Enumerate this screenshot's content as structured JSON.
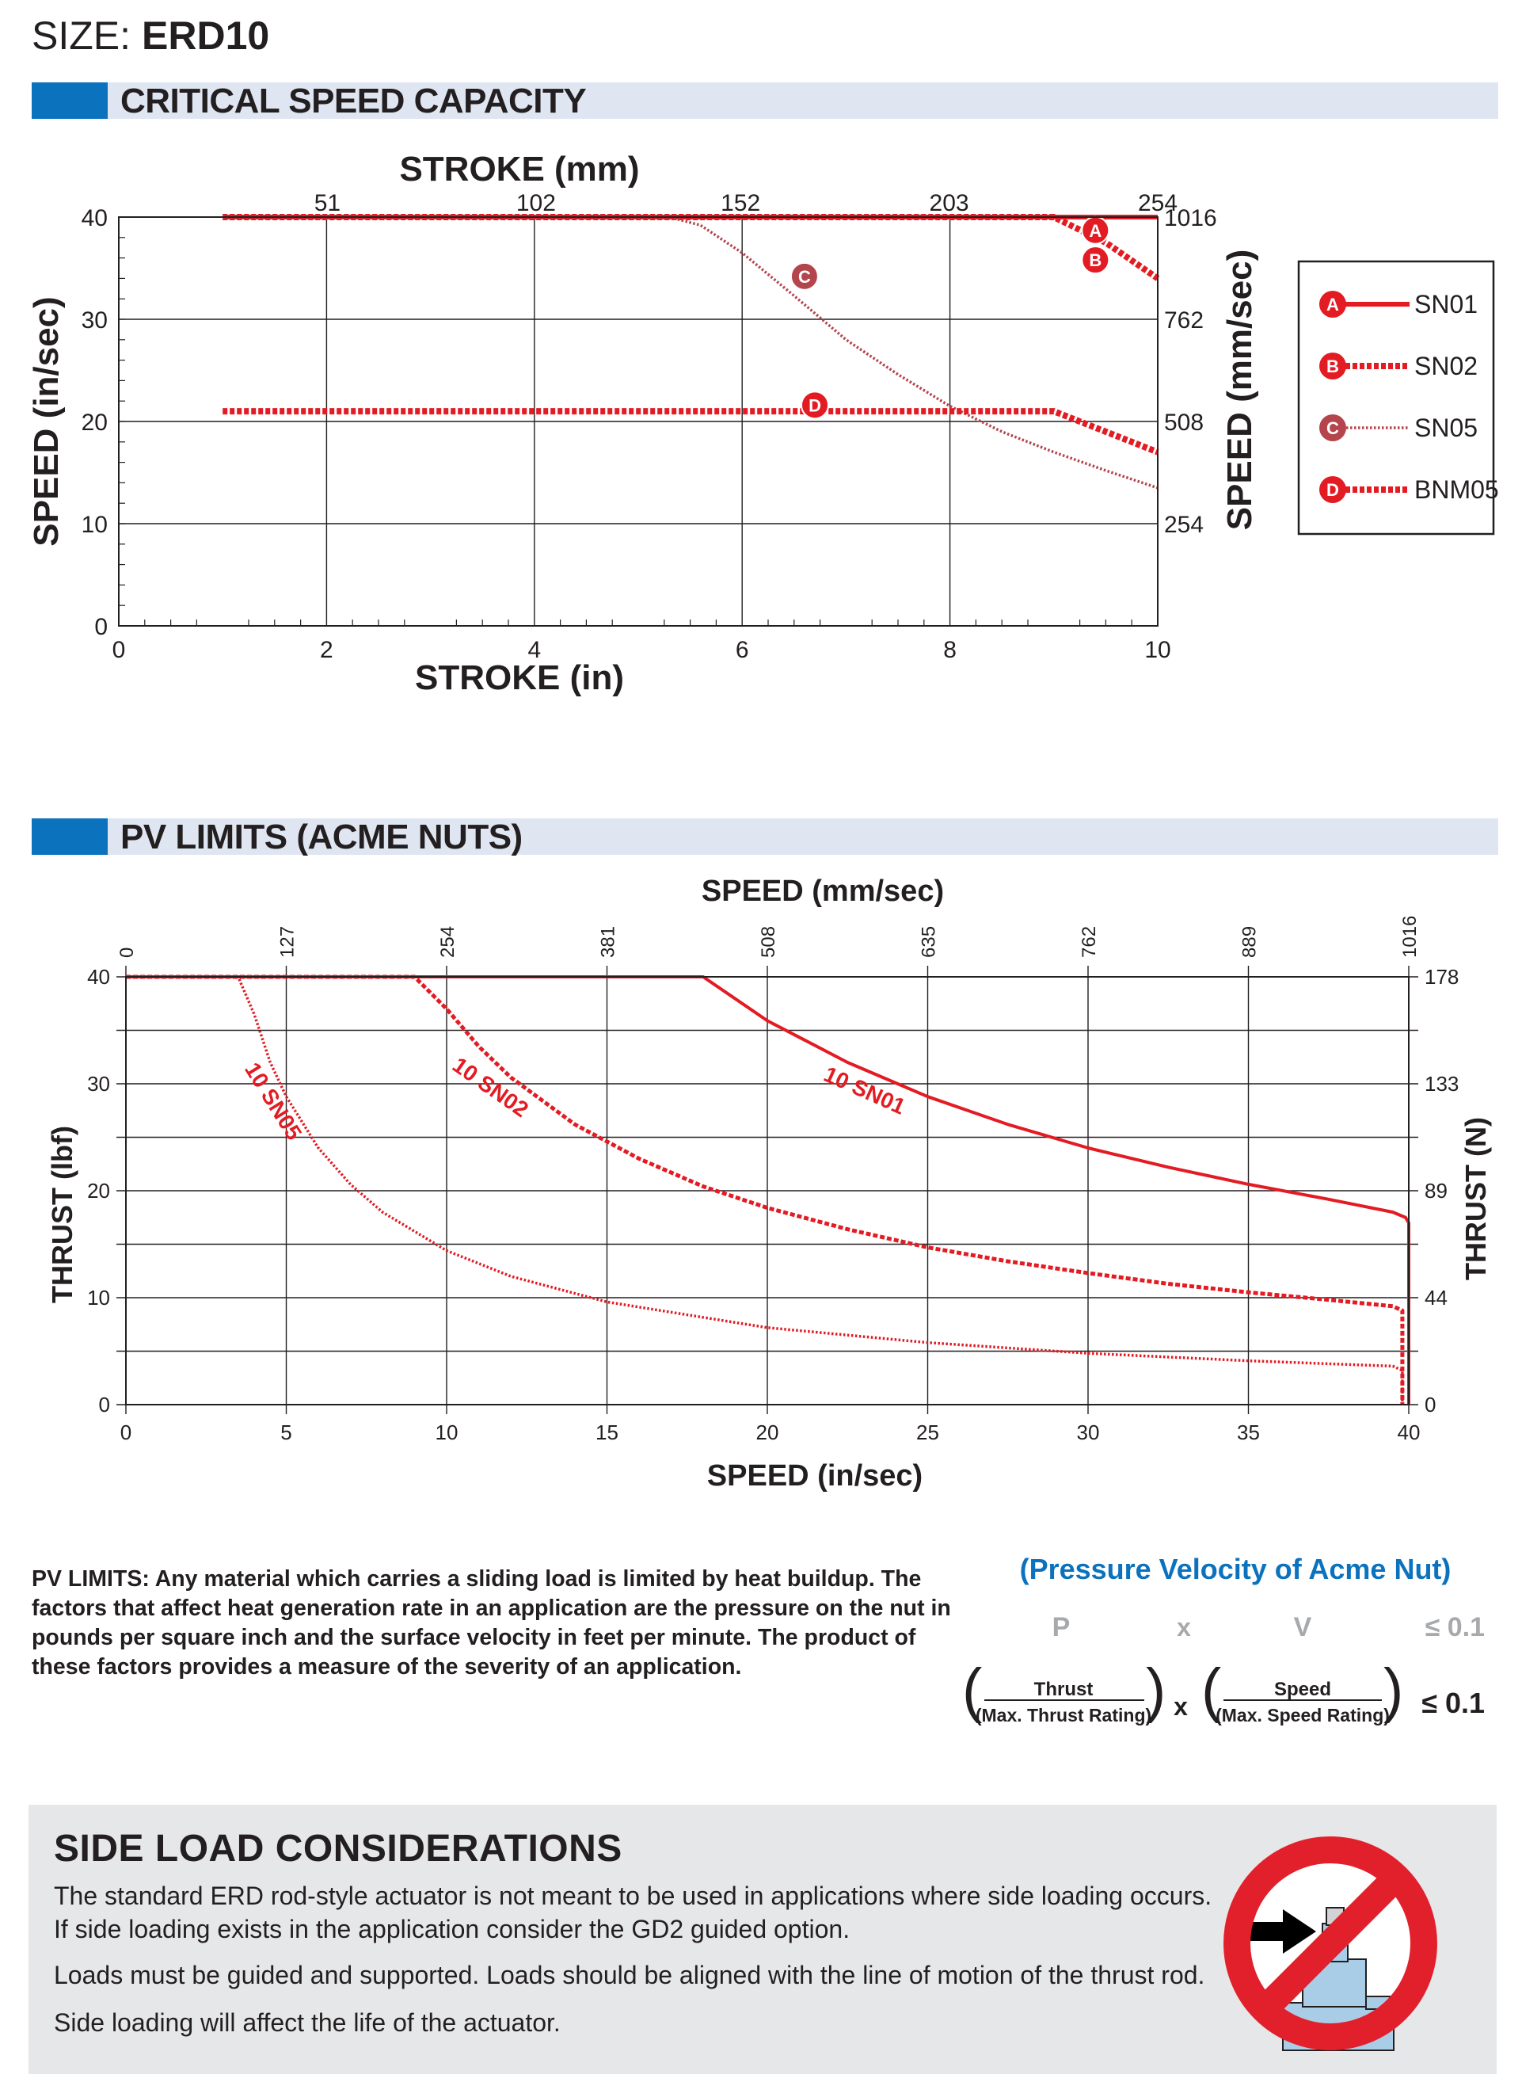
{
  "header": {
    "size_label": "SIZE:",
    "size_value": "ERD10"
  },
  "sections": {
    "critical_speed": "CRITICAL SPEED CAPACITY",
    "pv_limits": "PV LIMITS (ACME NUTS)"
  },
  "colors": {
    "accent_blue": "#0b72be",
    "header_band": "#dfe6f2",
    "curve_red": "#e31b23",
    "curve_maroon": "#b5454c",
    "side_box": "#e6e7e8"
  },
  "chart_data": [
    {
      "type": "line",
      "title": "",
      "xlabel": "STROKE (in)",
      "x2label": "STROKE (mm)",
      "ylabel": "SPEED (in/sec)",
      "y2label": "SPEED (mm/sec)",
      "xlim": [
        0,
        10
      ],
      "ylim": [
        0,
        40
      ],
      "x_ticks": [
        "0",
        "2",
        "4",
        "6",
        "8",
        "10"
      ],
      "x2_ticks": [
        "51",
        "102",
        "152",
        "203",
        "254"
      ],
      "y_ticks": [
        "0",
        "10",
        "20",
        "30",
        "40"
      ],
      "y2_ticks": [
        "254",
        "508",
        "762",
        "1016"
      ],
      "grid": true,
      "legend_position": "right",
      "series": [
        {
          "name": "SN01",
          "marker": "A",
          "color": "#e31b23",
          "style": "solid",
          "x": [
            1,
            10
          ],
          "y": [
            40,
            40
          ]
        },
        {
          "name": "SN02",
          "marker": "B",
          "color": "#e31b23",
          "style": "dashed",
          "x": [
            1,
            9,
            9.5,
            10
          ],
          "y": [
            40,
            40,
            37.5,
            34
          ]
        },
        {
          "name": "SN05",
          "marker": "C",
          "color": "#b5454c",
          "style": "dotted",
          "x": [
            1,
            5.3,
            5.6,
            6.0,
            6.5,
            7.0,
            7.5,
            8.0,
            8.5,
            9.0,
            9.5,
            10
          ],
          "y": [
            40,
            40,
            39.2,
            36.5,
            32.3,
            28.0,
            24.6,
            21.5,
            19.0,
            17.0,
            15.2,
            13.5
          ]
        },
        {
          "name": "BNM05",
          "marker": "D",
          "color": "#e31b23",
          "style": "dashed",
          "x": [
            1,
            9,
            10
          ],
          "y": [
            21,
            21,
            17
          ]
        }
      ]
    },
    {
      "type": "line",
      "title": "",
      "xlabel": "SPEED (in/sec)",
      "x2label": "SPEED (mm/sec)",
      "ylabel": "THRUST (lbf)",
      "y2label": "THRUST (N)",
      "xlim": [
        0,
        40
      ],
      "ylim": [
        0,
        40
      ],
      "x_ticks": [
        "0",
        "5",
        "10",
        "15",
        "20",
        "25",
        "30",
        "35",
        "40"
      ],
      "x2_ticks": [
        "0",
        "127",
        "254",
        "381",
        "508",
        "635",
        "762",
        "889",
        "1016"
      ],
      "y_ticks": [
        "0",
        "10",
        "20",
        "30",
        "40"
      ],
      "y2_ticks": [
        "0",
        "44",
        "89",
        "133",
        "178"
      ],
      "grid": true,
      "series": [
        {
          "name": "10 SN01",
          "color": "#e31b23",
          "style": "solid",
          "x": [
            0,
            18,
            20,
            22.5,
            25,
            27.5,
            30,
            32.5,
            35,
            37.5,
            39.5,
            39.9,
            40,
            40
          ],
          "y": [
            40,
            40,
            35.9,
            32.0,
            28.8,
            26.2,
            24.0,
            22.2,
            20.6,
            19.2,
            18.0,
            17.5,
            17.0,
            0
          ]
        },
        {
          "name": "10 SN02",
          "color": "#e31b23",
          "style": "dashed",
          "x": [
            0,
            9,
            10,
            11,
            12,
            14,
            16,
            18,
            20,
            22.5,
            25,
            27.5,
            30,
            32.5,
            35,
            37.5,
            39.5,
            39.8,
            39.8
          ],
          "y": [
            40,
            40,
            37.0,
            33.5,
            30.6,
            26.2,
            23.0,
            20.4,
            18.4,
            16.4,
            14.7,
            13.4,
            12.3,
            11.3,
            10.5,
            9.8,
            9.2,
            8.8,
            0
          ]
        },
        {
          "name": "10 SN05",
          "color": "#e31b23",
          "style": "dotted",
          "x": [
            0,
            3.5,
            4,
            4.5,
            5,
            6,
            7,
            8,
            10,
            12,
            15,
            20,
            25,
            30,
            35,
            39.5,
            39.8,
            39.8
          ],
          "y": [
            40,
            40,
            36.5,
            32.0,
            28.8,
            24.0,
            20.6,
            18.0,
            14.4,
            12.0,
            9.6,
            7.2,
            5.8,
            4.8,
            4.1,
            3.6,
            3.2,
            0
          ]
        }
      ]
    }
  ],
  "legend": [
    {
      "marker": "A",
      "label": "SN01"
    },
    {
      "marker": "B",
      "label": "SN02"
    },
    {
      "marker": "C",
      "label": "SN05"
    },
    {
      "marker": "D",
      "label": "BNM05"
    }
  ],
  "pv": {
    "text": "PV LIMITS: Any material which carries a sliding load is limited by heat buildup. The factors that affect heat generation rate in an application are the pressure on the nut in pounds per square inch and the surface velocity in feet per minute. The product of these factors provides a measure of the severity of an application.",
    "formula_title": "(Pressure Velocity of Acme Nut)",
    "p": "P",
    "x": "x",
    "v": "V",
    "limit": "≤ 0.1",
    "thrust": "Thrust",
    "max_thrust": "(Max. Thrust Rating)",
    "speed": "Speed",
    "max_speed": "(Max. Speed Rating)",
    "times": "x",
    "result": "≤ 0.1"
  },
  "side_load": {
    "title": "SIDE LOAD CONSIDERATIONS",
    "p1": "The standard ERD rod-style actuator is not meant to be used in applications where side loading occurs. If side loading exists in the application consider the GD2 guided option.",
    "p2": "Loads must be guided and supported.  Loads should be aligned with the line of motion of the thrust rod.",
    "p3": "Side loading will affect the life of the actuator."
  }
}
